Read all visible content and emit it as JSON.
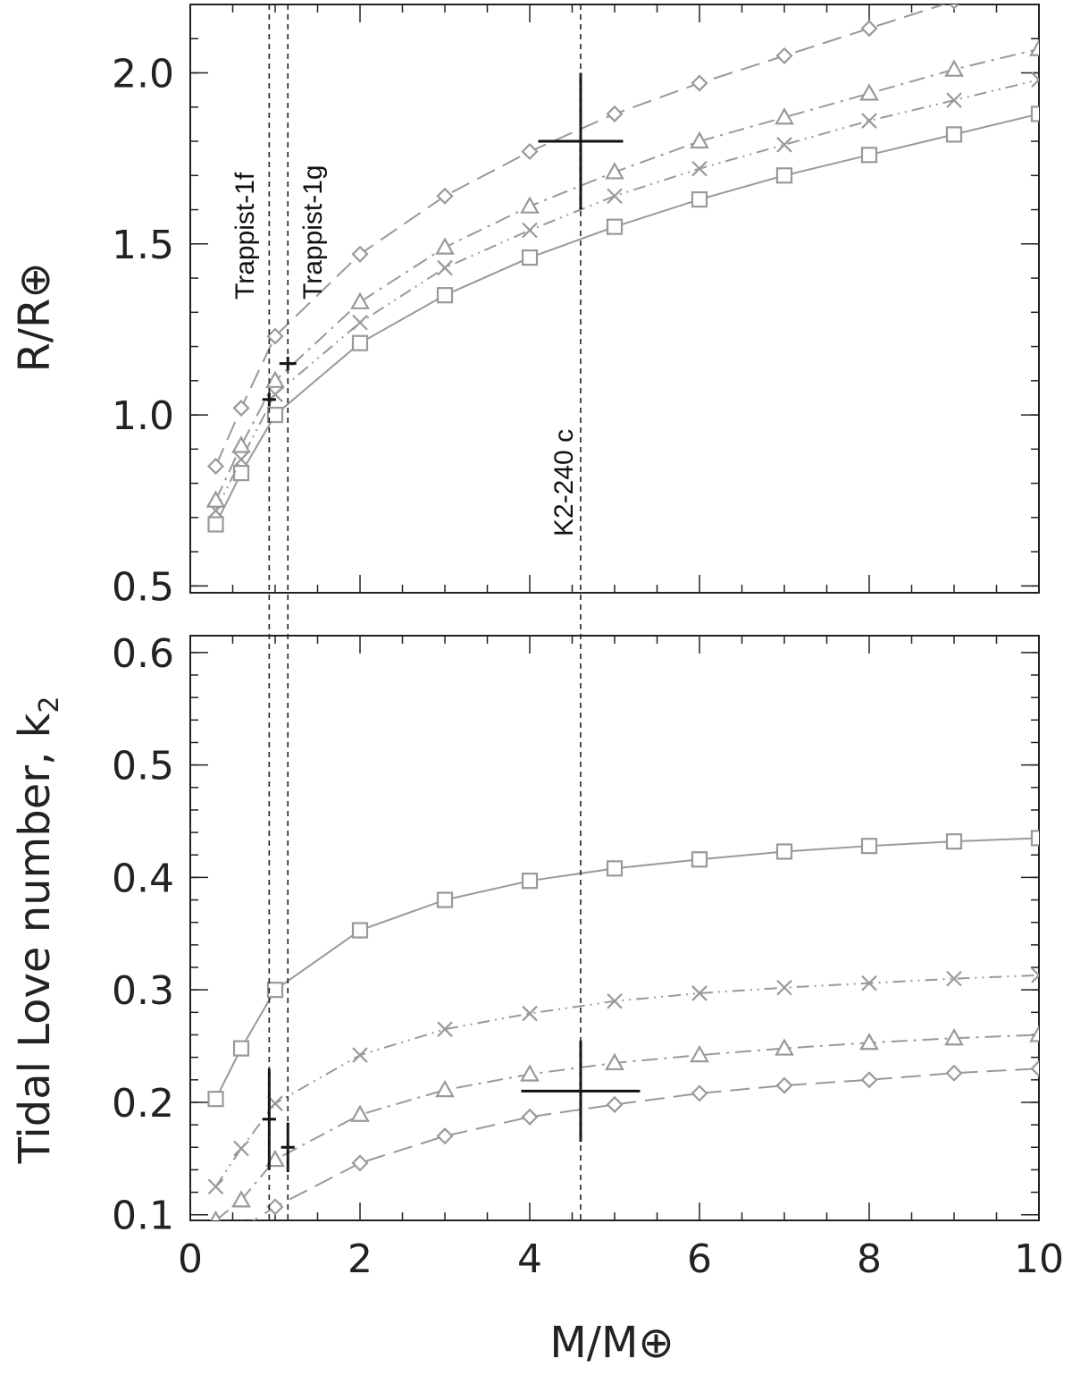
{
  "chart_data": [
    {
      "panel": "top",
      "type": "line",
      "xlabel": "M/M⊕",
      "ylabel": "R/R⊕",
      "xlim": [
        0,
        10
      ],
      "ylim": [
        0.48,
        2.2
      ],
      "xticks": [
        "0",
        "2",
        "4",
        "6",
        "8",
        "10"
      ],
      "yticks": [
        "0.5",
        "1.0",
        "1.5",
        "2.0"
      ],
      "ytick_values": [
        0.5,
        1.0,
        1.5,
        2.0
      ],
      "grid": false,
      "series": [
        {
          "marker": "square",
          "linestyle": "solid",
          "x": [
            0.3,
            0.6,
            1,
            2,
            3,
            4,
            5,
            6,
            7,
            8,
            9,
            10
          ],
          "y": [
            0.68,
            0.83,
            1.0,
            1.21,
            1.35,
            1.46,
            1.55,
            1.63,
            1.7,
            1.76,
            1.82,
            1.88
          ]
        },
        {
          "marker": "x",
          "linestyle": "dash-dot-dot",
          "x": [
            0.3,
            0.6,
            1,
            2,
            3,
            4,
            5,
            6,
            7,
            8,
            9,
            10
          ],
          "y": [
            0.72,
            0.87,
            1.06,
            1.27,
            1.43,
            1.54,
            1.64,
            1.72,
            1.79,
            1.86,
            1.92,
            1.98
          ]
        },
        {
          "marker": "triangle",
          "linestyle": "dash-dot",
          "x": [
            0.3,
            0.6,
            1,
            2,
            3,
            4,
            5,
            6,
            7,
            8,
            9,
            10
          ],
          "y": [
            0.75,
            0.91,
            1.1,
            1.33,
            1.49,
            1.61,
            1.71,
            1.8,
            1.87,
            1.94,
            2.01,
            2.07
          ]
        },
        {
          "marker": "diamond",
          "linestyle": "dashed",
          "x": [
            0.3,
            0.6,
            1,
            2,
            3,
            4,
            5,
            6,
            7,
            8,
            9,
            10
          ],
          "y": [
            0.85,
            1.02,
            1.23,
            1.47,
            1.64,
            1.77,
            1.88,
            1.97,
            2.05,
            2.13,
            2.21,
            2.29
          ]
        }
      ],
      "planets": [
        {
          "name": "Trappist-1f",
          "x": 0.93,
          "y": 1.045,
          "xerr": 0.08,
          "yerr": 0.02
        },
        {
          "name": "Trappist-1g",
          "x": 1.15,
          "y": 1.15,
          "xerr": 0.1,
          "yerr": 0.02
        },
        {
          "name": "K2-240 c",
          "x": 4.6,
          "y": 1.8,
          "xerr": 0.5,
          "yerr": 0.2
        }
      ]
    },
    {
      "panel": "bottom",
      "type": "line",
      "xlabel": "M/M⊕",
      "ylabel": "Tidal Love number, k",
      "ylabel_subscript": "2",
      "xlim": [
        0,
        10
      ],
      "ylim": [
        0.095,
        0.615
      ],
      "xticks": [
        "0",
        "2",
        "4",
        "6",
        "8",
        "10"
      ],
      "yticks": [
        "0.1",
        "0.2",
        "0.3",
        "0.4",
        "0.5",
        "0.6"
      ],
      "ytick_values": [
        0.1,
        0.2,
        0.3,
        0.4,
        0.5,
        0.6
      ],
      "grid": false,
      "series": [
        {
          "marker": "square",
          "linestyle": "solid",
          "x": [
            0.3,
            0.6,
            1,
            2,
            3,
            4,
            5,
            6,
            7,
            8,
            9,
            10
          ],
          "y": [
            0.203,
            0.248,
            0.3,
            0.353,
            0.38,
            0.397,
            0.408,
            0.416,
            0.423,
            0.428,
            0.432,
            0.435
          ]
        },
        {
          "marker": "x",
          "linestyle": "dash-dot-dot",
          "x": [
            0.3,
            0.6,
            1,
            2,
            3,
            4,
            5,
            6,
            7,
            8,
            9,
            10
          ],
          "y": [
            0.125,
            0.159,
            0.199,
            0.242,
            0.265,
            0.279,
            0.29,
            0.297,
            0.302,
            0.306,
            0.31,
            0.313
          ]
        },
        {
          "marker": "triangle",
          "linestyle": "dash-dot",
          "x": [
            0.3,
            0.6,
            1,
            2,
            3,
            4,
            5,
            6,
            7,
            8,
            9,
            10
          ],
          "y": [
            0.095,
            0.113,
            0.149,
            0.189,
            0.211,
            0.225,
            0.235,
            0.242,
            0.248,
            0.253,
            0.257,
            0.26
          ]
        },
        {
          "marker": "diamond",
          "linestyle": "dashed",
          "x": [
            0.3,
            0.6,
            1,
            2,
            3,
            4,
            5,
            6,
            7,
            8,
            9,
            10
          ],
          "y": [
            0.075,
            0.088,
            0.107,
            0.146,
            0.17,
            0.187,
            0.198,
            0.208,
            0.215,
            0.22,
            0.226,
            0.23
          ]
        }
      ],
      "planets": [
        {
          "name": "Trappist-1f",
          "x": 0.93,
          "y": 0.185,
          "xerr": 0.08,
          "yerr": 0.045
        },
        {
          "name": "Trappist-1g",
          "x": 1.15,
          "y": 0.16,
          "xerr": 0.08,
          "yerr": 0.022
        },
        {
          "name": "K2-240 c",
          "x": 4.6,
          "y": 0.21,
          "xerr": 0.7,
          "yerr": 0.045
        }
      ]
    }
  ]
}
